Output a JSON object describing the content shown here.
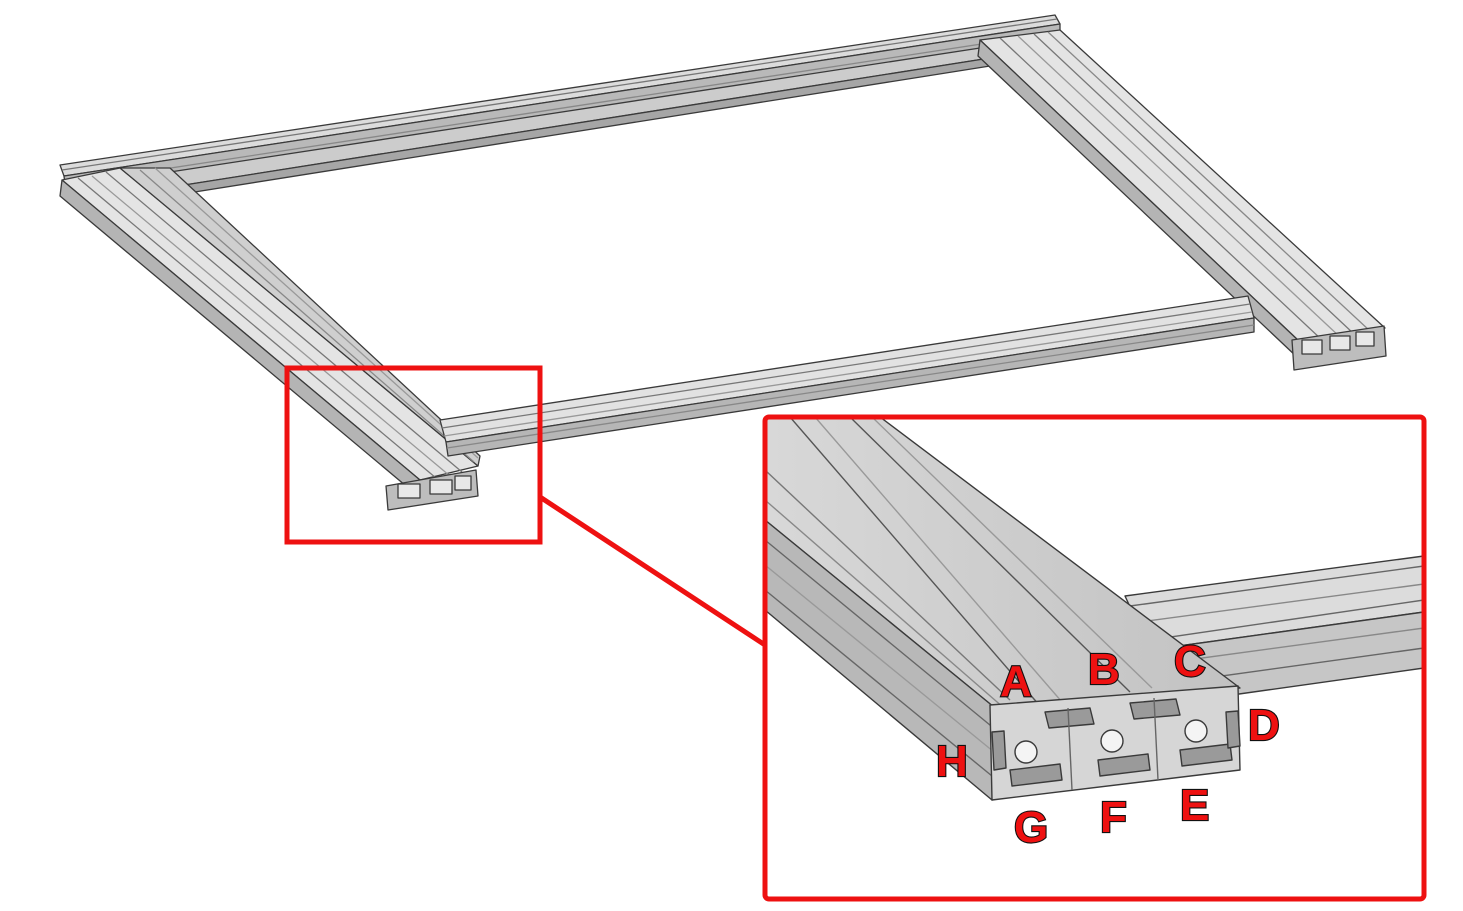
{
  "colors": {
    "highlight": "#ee1111",
    "extrusion_light": "#e2e2e2",
    "extrusion_mid": "#c4c4c4",
    "extrusion_dark": "#8e8e8e",
    "edge": "#3a3a3a",
    "background": "#ffffff"
  },
  "slot_labels": {
    "a": "A",
    "b": "B",
    "c": "C",
    "d": "D",
    "e": "E",
    "f": "F",
    "g": "G",
    "h": "H"
  }
}
